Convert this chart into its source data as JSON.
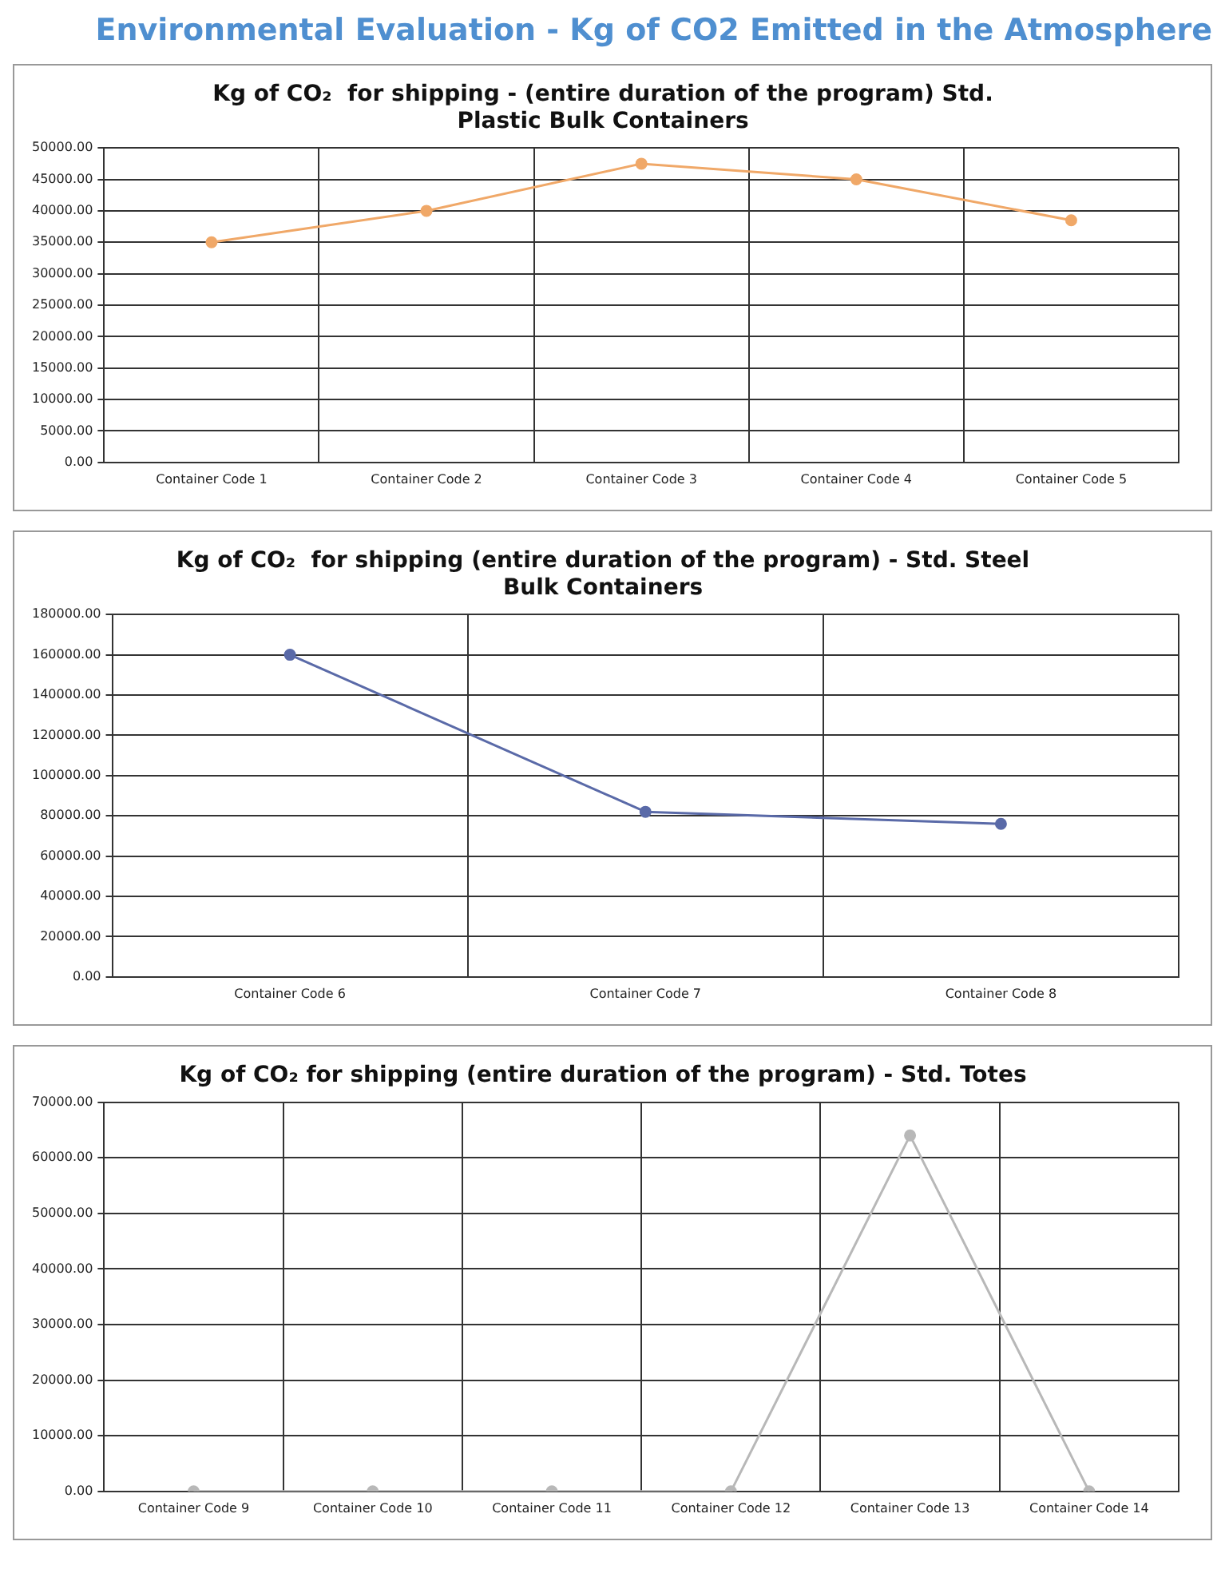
{
  "chart_data": [
    {
      "type": "line",
      "title": [
        "Kg of CO₂  for shipping - (entire duration of the program) Std.",
        "Plastic Bulk Containers"
      ],
      "annotations": [
        "Environmental Evaluation - Kg of CO2 Emitted in the Atmosphere"
      ],
      "categories": [
        "Container Code 1",
        "Container Code 2",
        "Container Code 3",
        "Container Code 4",
        "Container Code 5"
      ],
      "series": [
        {
          "color": "#f0a868",
          "values": [
            35000,
            40000,
            47500,
            45000,
            38500
          ]
        }
      ],
      "ylim": [
        0,
        50000
      ],
      "yticks": [
        {
          "value": 0,
          "label": "0.00"
        },
        {
          "value": 5000,
          "label": "5000.00"
        },
        {
          "value": 10000,
          "label": "10000.00"
        },
        {
          "value": 15000,
          "label": "15000.00"
        },
        {
          "value": 20000,
          "label": "20000.00"
        },
        {
          "value": 25000,
          "label": "25000.00"
        },
        {
          "value": 30000,
          "label": "30000.00"
        },
        {
          "value": 35000,
          "label": "35000.00"
        },
        {
          "value": 40000,
          "label": "40000.00"
        },
        {
          "value": 45000,
          "label": "45000.00"
        },
        {
          "value": 50000,
          "label": "50000.00"
        }
      ],
      "grid": true,
      "legend": false,
      "marker": "circle"
    },
    {
      "type": "line",
      "title": [
        "Kg of CO₂  for shipping (entire duration of the program) - Std. Steel",
        "Bulk Containers"
      ],
      "categories": [
        "Container Code 6",
        "Container Code 7",
        "Container Code 8"
      ],
      "series": [
        {
          "color": "#5a6aa8",
          "values": [
            160000,
            82000,
            76000
          ]
        }
      ],
      "ylim": [
        0,
        180000
      ],
      "yticks": [
        {
          "value": 0,
          "label": "0.00"
        },
        {
          "value": 20000,
          "label": "20000.00"
        },
        {
          "value": 40000,
          "label": "40000.00"
        },
        {
          "value": 60000,
          "label": "60000.00"
        },
        {
          "value": 80000,
          "label": "80000.00"
        },
        {
          "value": 100000,
          "label": "100000.00"
        },
        {
          "value": 120000,
          "label": "120000.00"
        },
        {
          "value": 140000,
          "label": "140000.00"
        },
        {
          "value": 160000,
          "label": "160000.00"
        },
        {
          "value": 180000,
          "label": "180000.00"
        }
      ],
      "grid": true,
      "legend": false,
      "marker": "circle"
    },
    {
      "type": "line",
      "title": "Kg of CO₂ for shipping (entire duration of the program) - Std. Totes",
      "categories": [
        "Container Code 9",
        "Container Code 10",
        "Container Code 11",
        "Container Code 12",
        "Container Code 13",
        "Container Code 14"
      ],
      "series": [
        {
          "color": "#b8b8b8",
          "values": [
            0,
            0,
            0,
            0,
            64000,
            0
          ]
        }
      ],
      "ylim": [
        0,
        70000
      ],
      "yticks": [
        {
          "value": 0,
          "label": "0.00"
        },
        {
          "value": 10000,
          "label": "10000.00"
        },
        {
          "value": 20000,
          "label": "20000.00"
        },
        {
          "value": 30000,
          "label": "30000.00"
        },
        {
          "value": 40000,
          "label": "40000.00"
        },
        {
          "value": 50000,
          "label": "50000.00"
        },
        {
          "value": 60000,
          "label": "60000.00"
        },
        {
          "value": 70000,
          "label": "70000.00"
        }
      ],
      "grid": true,
      "legend": false,
      "marker": "circle"
    }
  ]
}
